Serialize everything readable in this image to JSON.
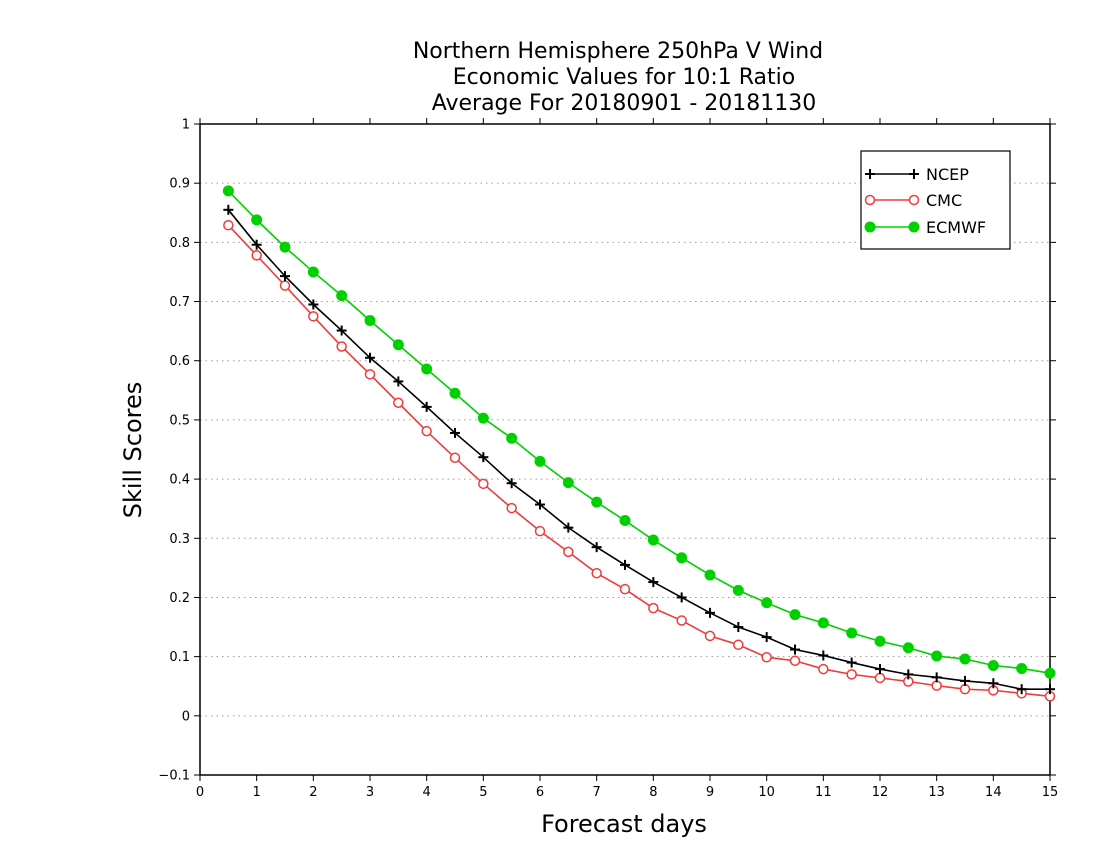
{
  "chart_data": {
    "type": "line",
    "title": [
      "Northern Hemisphere 250hPa V Wind",
      "Economic Values for 10:1 Ratio",
      "Average For 20180901 - 20181130"
    ],
    "xlabel": "Forecast days",
    "ylabel": "Skill Scores",
    "xlim": [
      0,
      15
    ],
    "ylim": [
      -0.1,
      1
    ],
    "xticks": [
      "0",
      "1",
      "2",
      "3",
      "4",
      "5",
      "6",
      "7",
      "8",
      "9",
      "10",
      "11",
      "12",
      "13",
      "14",
      "15"
    ],
    "yticks": [
      "−0.1",
      "0",
      "0.1",
      "0.2",
      "0.3",
      "0.4",
      "0.5",
      "0.6",
      "0.7",
      "0.8",
      "0.9",
      "1"
    ],
    "grid": "horizontal-dotted",
    "legend_position": "top-right",
    "x": [
      0.5,
      1,
      1.5,
      2,
      2.5,
      3,
      3.5,
      4,
      4.5,
      5,
      5.5,
      6,
      6.5,
      7,
      7.5,
      8,
      8.5,
      9,
      9.5,
      10,
      10.5,
      11,
      11.5,
      12,
      12.5,
      13,
      13.5,
      14,
      14.5,
      15
    ],
    "series": [
      {
        "name": "NCEP",
        "color": "#000000",
        "marker": "plus",
        "values": [
          0.855,
          0.796,
          0.743,
          0.695,
          0.651,
          0.605,
          0.565,
          0.522,
          0.478,
          0.437,
          0.393,
          0.357,
          0.318,
          0.285,
          0.255,
          0.226,
          0.2,
          0.174,
          0.15,
          0.133,
          0.112,
          0.102,
          0.09,
          0.079,
          0.07,
          0.065,
          0.059,
          0.055,
          0.045,
          0.045
        ]
      },
      {
        "name": "CMC",
        "color": "#ee3b3b",
        "marker": "open-circle",
        "values": [
          0.829,
          0.778,
          0.727,
          0.675,
          0.624,
          0.577,
          0.529,
          0.481,
          0.436,
          0.392,
          0.351,
          0.312,
          0.277,
          0.241,
          0.214,
          0.182,
          0.161,
          0.135,
          0.12,
          0.099,
          0.093,
          0.079,
          0.07,
          0.064,
          0.058,
          0.051,
          0.045,
          0.043,
          0.038,
          0.033
        ]
      },
      {
        "name": "ECMWF",
        "color": "#00d000",
        "marker": "filled-circle",
        "values": [
          0.887,
          0.838,
          0.792,
          0.75,
          0.71,
          0.668,
          0.627,
          0.586,
          0.545,
          0.503,
          0.469,
          0.43,
          0.394,
          0.361,
          0.33,
          0.297,
          0.267,
          0.238,
          0.212,
          0.191,
          0.171,
          0.157,
          0.14,
          0.126,
          0.115,
          0.101,
          0.096,
          0.085,
          0.08,
          0.072
        ]
      }
    ]
  }
}
